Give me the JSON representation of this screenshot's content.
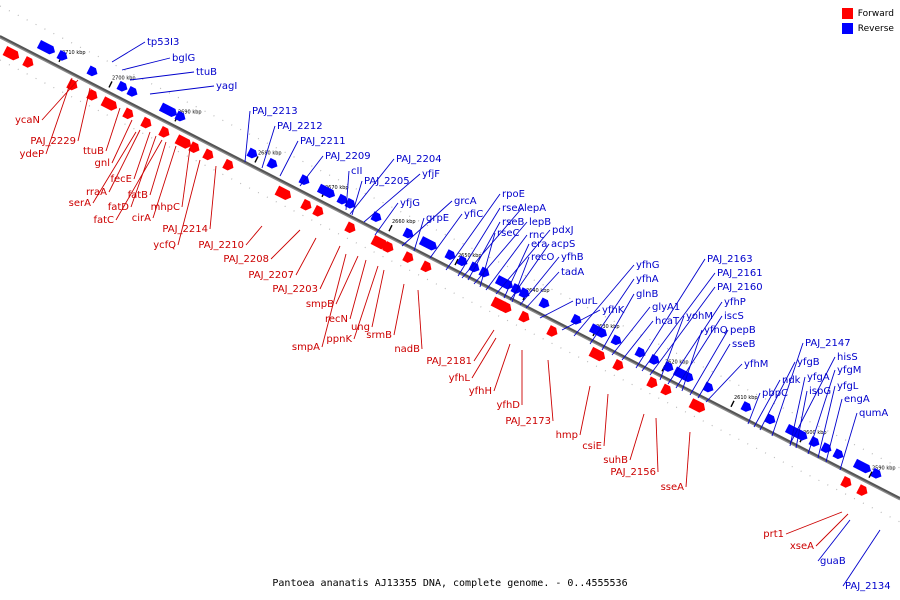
{
  "legend": {
    "forward": {
      "label": "Forward",
      "color": "#ff0000"
    },
    "reverse": {
      "label": "Reverse",
      "color": "#0000ff"
    }
  },
  "caption": "Pantoea ananatis AJ13355 DNA, complete genome. - 0..4555536",
  "ticks": [
    "2710 kbp",
    "2700 kbp",
    "2690 kbp",
    "2680 kbp",
    "2670 kbp",
    "2660 kbp",
    "2650 kbp",
    "2640 kbp",
    "2630 kbp",
    "2620 kbp",
    "2610 kbp",
    "2600 kbp",
    "2590 kbp"
  ],
  "reverse_labels": [
    "tp53I3",
    "bglG",
    "ttuB",
    "yagI",
    "PAJ_2213",
    "PAJ_2212",
    "PAJ_2211",
    "PAJ_2209",
    "cII",
    "PAJ_2204",
    "PAJ_2205",
    "yfjF",
    "yfjG",
    "grcA",
    "grpE",
    "yfiC",
    "rpoE",
    "rseA",
    "lepA",
    "rseB",
    "lepB",
    "rseC",
    "rnc",
    "pdxJ",
    "era",
    "acpS",
    "recO",
    "yfhB",
    "tadA",
    "purL",
    "yfhK",
    "yfhG",
    "yfhA",
    "glnB",
    "glyA1",
    "hcaT",
    "PAJ_2163",
    "PAJ_2161",
    "PAJ_2160",
    "yohM",
    "yfhP",
    "iscS",
    "yfhQ",
    "pepB",
    "sseB",
    "yfhM",
    "PAJ_2147",
    "hisS",
    "yfgB",
    "ndk",
    "yfgM",
    "yfgA",
    "pbpC",
    "ispG",
    "yfgL",
    "engA",
    "qumA",
    "PAJ_2134",
    "guaB"
  ],
  "forward_labels": [
    "ycaN",
    "PAJ_2229",
    "ydeP",
    "ttuB",
    "gnl",
    "rraA",
    "fecE",
    "serA",
    "fatB",
    "fatD",
    "fatC",
    "mhpC",
    "cirA",
    "PAJ_2214",
    "ycfQ",
    "PAJ_2210",
    "PAJ_2208",
    "PAJ_2207",
    "PAJ_2203",
    "smpB",
    "recN",
    "ung",
    "ppnK",
    "smpA",
    "srmB",
    "nadB",
    "PAJ_2181",
    "yfhL",
    "yfhH",
    "yfhD",
    "PAJ_2173",
    "hmp",
    "csiE",
    "suhB",
    "PAJ_2156",
    "sseA",
    "prt1",
    "xseA"
  ]
}
